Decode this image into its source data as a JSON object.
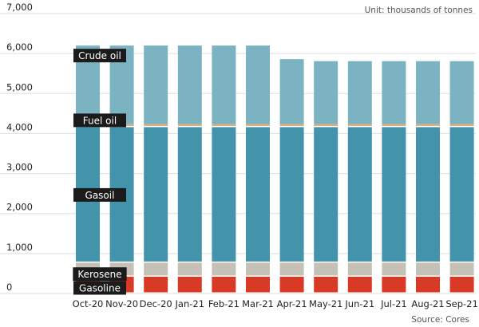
{
  "chart_data": {
    "type": "bar",
    "stacked": true,
    "unit_note": "Unit: thousands of tonnes",
    "source_note": "Source: Cores",
    "categories": [
      "Oct-20",
      "Nov-20",
      "Dec-20",
      "Jan-21",
      "Feb-21",
      "Mar-21",
      "Apr-21",
      "May-21",
      "Jun-21",
      "Jul-21",
      "Aug-21",
      "Sep-21"
    ],
    "series": [
      {
        "name": "Gasoline",
        "color": "#d83a25",
        "values": [
          420,
          420,
          420,
          420,
          420,
          420,
          420,
          420,
          420,
          420,
          420,
          420
        ]
      },
      {
        "name": "Kerosene",
        "color": "#c6c1b7",
        "values": [
          350,
          350,
          350,
          350,
          350,
          350,
          350,
          350,
          350,
          350,
          350,
          350
        ]
      },
      {
        "name": "Gasoil",
        "color": "#4393ab",
        "values": [
          3390,
          3390,
          3390,
          3390,
          3390,
          3390,
          3390,
          3390,
          3390,
          3390,
          3390,
          3390
        ]
      },
      {
        "name": "Fuel oil",
        "color": "#d9a877",
        "values": [
          80,
          80,
          80,
          80,
          80,
          80,
          80,
          80,
          80,
          80,
          80,
          80
        ]
      },
      {
        "name": "Crude oil",
        "color": "#7cb3c3",
        "values": [
          1960,
          1960,
          1960,
          1960,
          1960,
          1960,
          1620,
          1570,
          1570,
          1570,
          1570,
          1570
        ]
      }
    ],
    "y_ticks": [
      "0",
      "1,000",
      "2,000",
      "3,000",
      "4,000",
      "5,000",
      "6,000",
      "7,000"
    ],
    "ylim": [
      0,
      7000
    ],
    "grid": true,
    "label_placement": "inside first bars (left)"
  }
}
